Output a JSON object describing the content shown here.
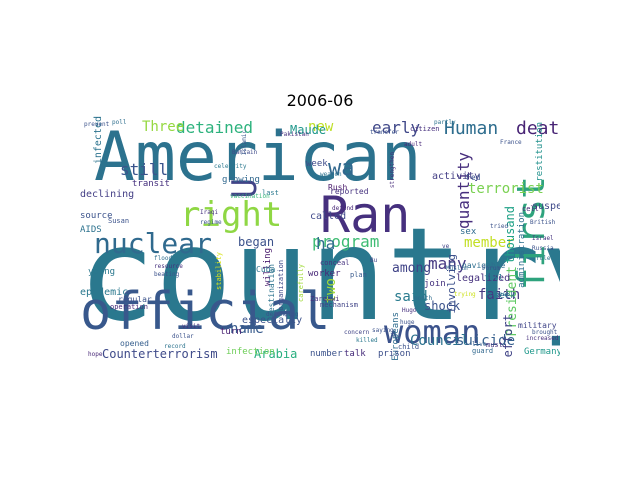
{
  "title": "2006-06",
  "words": [
    {
      "text": "countryS",
      "color": "#2a788e"
    },
    {
      "text": "American",
      "color": "#2c728e"
    },
    {
      "text": "official",
      "color": "#38588c"
    },
    {
      "text": "Ran",
      "color": "#46307e"
    },
    {
      "text": "right",
      "color": "#8fd744"
    },
    {
      "text": "first",
      "color": "#2ea37d"
    },
    {
      "text": "woman",
      "color": "#3b528b"
    },
    {
      "text": "nuclear",
      "color": "#306a8e"
    },
    {
      "text": "U",
      "color": "#414487"
    },
    {
      "text": "Human",
      "color": "#2e6d8e"
    },
    {
      "text": "death",
      "color": "#482475"
    },
    {
      "text": "detained",
      "color": "#2db27d"
    },
    {
      "text": "program",
      "color": "#3ebc73"
    },
    {
      "text": "Three",
      "color": "#95d840"
    },
    {
      "text": "wa",
      "color": "#31688e"
    },
    {
      "text": "early",
      "color": "#3f4788"
    },
    {
      "text": "new",
      "color": "#bddf26"
    },
    {
      "text": "quantity",
      "color": "#472f7d"
    },
    {
      "text": "many",
      "color": "#453882"
    },
    {
      "text": "terrorist",
      "color": "#7ad151"
    },
    {
      "text": "ha",
      "color": "#2f6c8e"
    },
    {
      "text": "still",
      "color": "#3a548c"
    },
    {
      "text": "began",
      "color": "#3b528b"
    },
    {
      "text": "name",
      "color": "#375a8c"
    },
    {
      "text": "member",
      "color": "#c2df23"
    },
    {
      "text": "among",
      "color": "#404387"
    },
    {
      "text": "said",
      "color": "#297b8e"
    },
    {
      "text": "faith",
      "color": "#453781"
    },
    {
      "text": "two",
      "color": "#a2da37"
    },
    {
      "text": "Council",
      "color": "#2c728e"
    },
    {
      "text": "suicide",
      "color": "#355f8d"
    },
    {
      "text": "Counterterrorism",
      "color": "#3e4a89"
    },
    {
      "text": "President",
      "color": "#5ec962"
    },
    {
      "text": "thousand",
      "color": "#1fa187"
    },
    {
      "text": "time effort",
      "color": "#414487"
    },
    {
      "text": "Arabia",
      "color": "#29af7f"
    },
    {
      "text": "shock",
      "color": "#3b528b"
    },
    {
      "text": "involving",
      "color": "#3c508b"
    },
    {
      "text": "Maude",
      "color": "#1f978b"
    },
    {
      "text": "infected",
      "color": "#2c738e"
    },
    {
      "text": "declining",
      "color": "#433e85"
    },
    {
      "text": "epidemic",
      "color": "#2a788e"
    },
    {
      "text": "especially",
      "color": "#3b528b"
    },
    {
      "text": "legalized",
      "color": "#46327e"
    },
    {
      "text": "activity",
      "color": "#433e85"
    },
    {
      "text": "called",
      "color": "#3f4889"
    },
    {
      "text": "willing",
      "color": "#481a6c"
    },
    {
      "text": "administration",
      "color": "#2d708e"
    },
    {
      "text": "suspend",
      "color": "#3e4989"
    },
    {
      "text": "restitution",
      "color": "#21918c"
    },
    {
      "text": "transit",
      "color": "#46307e"
    },
    {
      "text": "growing",
      "color": "#31688e"
    },
    {
      "text": "week",
      "color": "#3e4c8a"
    },
    {
      "text": "source",
      "color": "#3b528b"
    },
    {
      "text": "worker",
      "color": "#482878"
    },
    {
      "text": "young",
      "color": "#2a788e"
    },
    {
      "text": "AIDS",
      "color": "#2c728e"
    },
    {
      "text": "join",
      "color": "#46337f"
    },
    {
      "text": "seek",
      "color": "#2d708e"
    },
    {
      "text": "turn",
      "color": "#482173"
    },
    {
      "text": "Germany",
      "color": "#1f988b"
    },
    {
      "text": "Europeans",
      "color": "#2f6c8e"
    },
    {
      "text": "regular",
      "color": "#3b528b"
    },
    {
      "text": "opened",
      "color": "#355e8d"
    },
    {
      "text": "infection",
      "color": "#6ece58"
    },
    {
      "text": "number",
      "color": "#3b528b"
    },
    {
      "text": "talk",
      "color": "#472d7b"
    },
    {
      "text": "prison",
      "color": "#3c4f8a"
    },
    {
      "text": "military",
      "color": "#404588"
    },
    {
      "text": "Rush",
      "color": "#48186a"
    },
    {
      "text": "destination",
      "color": "#2c738e"
    },
    {
      "text": "Cuba",
      "color": "#2c738e"
    },
    {
      "text": "reported",
      "color": "#46337f"
    },
    {
      "text": "sex",
      "color": "#2f6b8e"
    },
    {
      "text": "navigable",
      "color": "#2e6e8e"
    },
    {
      "text": "fell",
      "color": "#2a788e"
    },
    {
      "text": "Fed",
      "color": "#3b528b"
    },
    {
      "text": "cell",
      "color": "#482475"
    },
    {
      "text": "child",
      "color": "#3b528b"
    },
    {
      "text": "must",
      "color": "#46327e"
    },
    {
      "text": "guard",
      "color": "#31688e"
    },
    {
      "text": "citizen",
      "color": "#46307e"
    },
    {
      "text": "carefully",
      "color": "#a0da39"
    },
    {
      "text": "stability",
      "color": "#d8e219"
    },
    {
      "text": "operation",
      "color": "#472c7a"
    },
    {
      "text": "plan",
      "color": "#38598c"
    },
    {
      "text": "conceal",
      "color": "#46337f"
    },
    {
      "text": "Zarqawi",
      "color": "#46307e"
    },
    {
      "text": "mechanism",
      "color": "#404387"
    },
    {
      "text": "organization",
      "color": "#3e4a89"
    },
    {
      "text": "Susan",
      "color": "#3b528b"
    },
    {
      "text": "last",
      "color": "#2a788e"
    },
    {
      "text": "month",
      "color": "#2f6c8e"
    },
    {
      "text": "live",
      "color": "#355f8d"
    },
    {
      "text": "Muslim",
      "color": "#31688e"
    },
    {
      "text": "British",
      "color": "#3b528b"
    },
    {
      "text": "global",
      "color": "#2e6e8e"
    },
    {
      "text": "trying",
      "color": "#cde11d"
    },
    {
      "text": "partly",
      "color": "#2c738e"
    },
    {
      "text": "France",
      "color": "#3b528b"
    },
    {
      "text": "Hugo",
      "color": "#46307e"
    },
    {
      "text": "huge",
      "color": "#3b528b"
    },
    {
      "text": "adult",
      "color": "#482878"
    },
    {
      "text": "tried",
      "color": "#3b528b"
    },
    {
      "text": "ve",
      "color": "#404387"
    },
    {
      "text": "Bu",
      "color": "#414487"
    },
    {
      "text": "Forum",
      "color": "#3b528b"
    },
    {
      "text": "Pakistan",
      "color": "#46307e"
    },
    {
      "text": "Bahrain",
      "color": "#3e4a89"
    },
    {
      "text": "Islamic",
      "color": "#38588c"
    },
    {
      "text": "transfer",
      "color": "#3b528b"
    },
    {
      "text": "strengthen",
      "color": "#472c7a"
    },
    {
      "text": "celebrity",
      "color": "#2a788e"
    },
    {
      "text": "vaccination",
      "color": "#35b779"
    },
    {
      "text": "Iraqi",
      "color": "#46337f"
    },
    {
      "text": "regime",
      "color": "#3b528b"
    },
    {
      "text": "weapon",
      "color": "#2c738e"
    },
    {
      "text": "defend",
      "color": "#482878"
    },
    {
      "text": "defending",
      "color": "#3b528b"
    },
    {
      "text": "flood",
      "color": "#2e6e8e"
    },
    {
      "text": "resource",
      "color": "#46307e"
    },
    {
      "text": "beating",
      "color": "#3b528b"
    },
    {
      "text": "record",
      "color": "#2c738e"
    },
    {
      "text": "dollar",
      "color": "#3b528b"
    },
    {
      "text": "visit",
      "color": "#46307e"
    },
    {
      "text": "concern",
      "color": "#414487"
    },
    {
      "text": "killed",
      "color": "#2a788e"
    },
    {
      "text": "saying",
      "color": "#3b528b"
    },
    {
      "text": "Israel",
      "color": "#46337f"
    },
    {
      "text": "Russia",
      "color": "#3b528b"
    },
    {
      "text": "rule",
      "color": "#2c738e"
    },
    {
      "text": "brought",
      "color": "#3b528b"
    },
    {
      "text": "increased",
      "color": "#46307e"
    },
    {
      "text": "hope",
      "color": "#482878"
    },
    {
      "text": "prevent",
      "color": "#3b528b"
    },
    {
      "text": "poll",
      "color": "#2e6e8e"
    }
  ]
}
